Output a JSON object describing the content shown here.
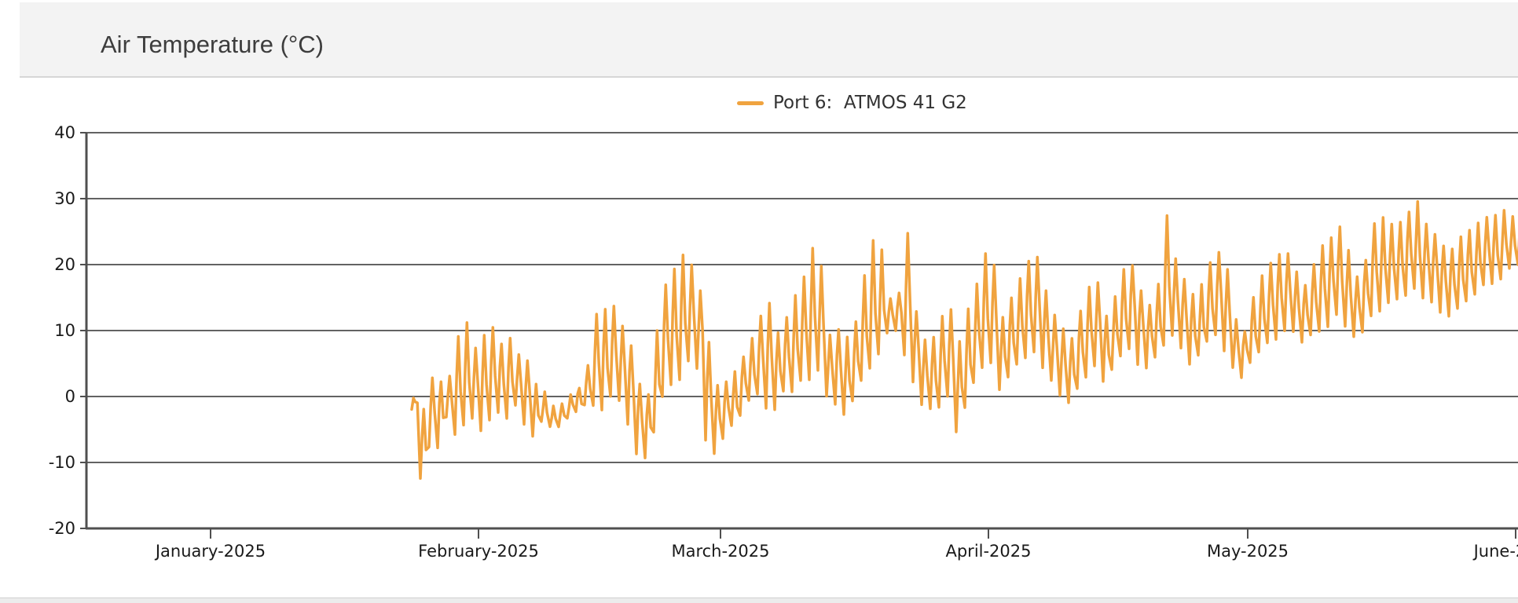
{
  "header": {
    "title": "Air Temperature (°C)"
  },
  "legend": {
    "series_label": "Port 6:  ATMOS 41 G2",
    "swatch_color": "#F0A33F"
  },
  "colors": {
    "line": "#F0A33F",
    "grid": "#636363",
    "axis": "#4f4f4f",
    "tick_text": "#1a1a1a",
    "header_bg": "#f3f3f3",
    "title_text": "#3d3d3d"
  },
  "chart_data": {
    "type": "line",
    "title": "Air Temperature (°C)",
    "grid": true,
    "legend_position": "top-center",
    "series": [
      {
        "name": "Port 6:  ATMOS 41 G2",
        "color": "#F0A33F"
      }
    ],
    "x_axis": {
      "tick_labels": [
        "January-2025",
        "February-2025",
        "March-2025",
        "April-2025",
        "May-2025",
        "June-2025"
      ],
      "tick_day_of_year": [
        0,
        31,
        59,
        90,
        120,
        151
      ]
    },
    "y_axis": {
      "tick_values": [
        40,
        30,
        20,
        10,
        0,
        -10,
        -20
      ],
      "min": -20,
      "max": 40
    },
    "columns": [
      "day_of_year",
      "min_c",
      "max_c"
    ],
    "daily_min_max": [
      [
        23,
        -1.5,
        -0.5
      ],
      [
        24,
        -12.3,
        -2
      ],
      [
        25,
        -7.5,
        2.5
      ],
      [
        26,
        -7.5,
        2
      ],
      [
        27,
        -3.5,
        3
      ],
      [
        28,
        -6,
        9
      ],
      [
        29,
        -4,
        11.2
      ],
      [
        30,
        -3,
        7
      ],
      [
        31,
        -5,
        9.5
      ],
      [
        32,
        -4,
        10.5
      ],
      [
        33,
        -2.5,
        8
      ],
      [
        34,
        -3.5,
        9
      ],
      [
        35,
        -1,
        6.5
      ],
      [
        36,
        -4.5,
        5.5
      ],
      [
        37,
        -6,
        2
      ],
      [
        38,
        -3.5,
        0.5
      ],
      [
        39,
        -4.2,
        -1.5
      ],
      [
        40,
        -4.5,
        -1
      ],
      [
        41,
        -3,
        0.5
      ],
      [
        42,
        -2,
        1.5
      ],
      [
        43,
        -1.5,
        5
      ],
      [
        44,
        -1,
        12.5
      ],
      [
        45,
        -2,
        13
      ],
      [
        46,
        0,
        13.5
      ],
      [
        47,
        -1,
        11
      ],
      [
        48,
        -4,
        8
      ],
      [
        49,
        -8.7,
        2
      ],
      [
        50,
        -9.5,
        0.5
      ],
      [
        51,
        -5,
        10
      ],
      [
        52,
        0,
        17
      ],
      [
        53,
        2,
        19
      ],
      [
        54,
        3,
        21.6
      ],
      [
        55,
        5,
        20
      ],
      [
        56,
        4,
        16
      ],
      [
        57,
        -6.3,
        8
      ],
      [
        58,
        -8.6,
        1.5
      ],
      [
        59,
        -6,
        2
      ],
      [
        60,
        -4.5,
        3.5
      ],
      [
        61,
        -2.5,
        6
      ],
      [
        62,
        -1,
        9
      ],
      [
        63,
        0,
        12.5
      ],
      [
        64,
        -1.5,
        14
      ],
      [
        65,
        -2,
        10
      ],
      [
        66,
        0.5,
        12
      ],
      [
        67,
        1,
        15
      ],
      [
        68,
        2,
        18
      ],
      [
        69,
        3,
        22.2
      ],
      [
        70,
        4,
        19.7
      ],
      [
        71,
        0,
        9
      ],
      [
        72,
        -1,
        10.4
      ],
      [
        73,
        -2.8,
        9
      ],
      [
        74,
        -1,
        11.5
      ],
      [
        75,
        2,
        18.5
      ],
      [
        76,
        4,
        23.6
      ],
      [
        77,
        6,
        22
      ],
      [
        78,
        9.5,
        15
      ],
      [
        79,
        10,
        16
      ],
      [
        80,
        6,
        24.5
      ],
      [
        81,
        2,
        13
      ],
      [
        82,
        -1,
        8.5
      ],
      [
        83,
        -2,
        9
      ],
      [
        84,
        -1.5,
        12
      ],
      [
        85,
        0,
        13
      ],
      [
        86,
        -5.5,
        8
      ],
      [
        87,
        -2,
        13.5
      ],
      [
        88,
        2,
        17
      ],
      [
        89,
        4,
        22
      ],
      [
        90,
        5,
        20
      ],
      [
        91,
        1,
        12
      ],
      [
        92,
        3,
        15
      ],
      [
        93,
        5,
        18
      ],
      [
        94,
        6,
        20.5
      ],
      [
        95,
        7,
        21
      ],
      [
        96,
        4,
        16
      ],
      [
        97,
        2,
        12.5
      ],
      [
        98,
        0.5,
        10
      ],
      [
        99,
        -1,
        9
      ],
      [
        100,
        1,
        13
      ],
      [
        101,
        3,
        16.5
      ],
      [
        102,
        5,
        17
      ],
      [
        103,
        2,
        12
      ],
      [
        104,
        4,
        15
      ],
      [
        105,
        6,
        19
      ],
      [
        106,
        7,
        20
      ],
      [
        107,
        5,
        16
      ],
      [
        108,
        4,
        14
      ],
      [
        109,
        6,
        17
      ],
      [
        110,
        8,
        27.3
      ],
      [
        111,
        9,
        21
      ],
      [
        112,
        7,
        18
      ],
      [
        113,
        5,
        15.5
      ],
      [
        114,
        6,
        17
      ],
      [
        115,
        8,
        20
      ],
      [
        116,
        9,
        22
      ],
      [
        117,
        7,
        19
      ],
      [
        118,
        4,
        12
      ],
      [
        119,
        3.2,
        10
      ],
      [
        120,
        5,
        15
      ],
      [
        121,
        7,
        18.5
      ],
      [
        122,
        8,
        20
      ],
      [
        123,
        9,
        21.5
      ],
      [
        124,
        10,
        22
      ],
      [
        125,
        9.5,
        19
      ],
      [
        126,
        8,
        17
      ],
      [
        127,
        9,
        20
      ],
      [
        128,
        10,
        23
      ],
      [
        129,
        11,
        24
      ],
      [
        130,
        12,
        25.5
      ],
      [
        131,
        11,
        22
      ],
      [
        132,
        9,
        18
      ],
      [
        133,
        10,
        21
      ],
      [
        134,
        12,
        26
      ],
      [
        135,
        13,
        27
      ],
      [
        136,
        14,
        26
      ],
      [
        137,
        15,
        26.5
      ],
      [
        138,
        15.5,
        28
      ],
      [
        139,
        16,
        29.3
      ],
      [
        140,
        15,
        26
      ],
      [
        141,
        14,
        24.6
      ],
      [
        142,
        12.7,
        23
      ],
      [
        143,
        12,
        22.7
      ],
      [
        144,
        13,
        24
      ],
      [
        145,
        14.5,
        25
      ],
      [
        146,
        15.5,
        26
      ],
      [
        147,
        16.5,
        27.3
      ],
      [
        148,
        17,
        27.5
      ],
      [
        149,
        18,
        28
      ],
      [
        150,
        19,
        27
      ],
      [
        151,
        20,
        27.5
      ]
    ]
  }
}
